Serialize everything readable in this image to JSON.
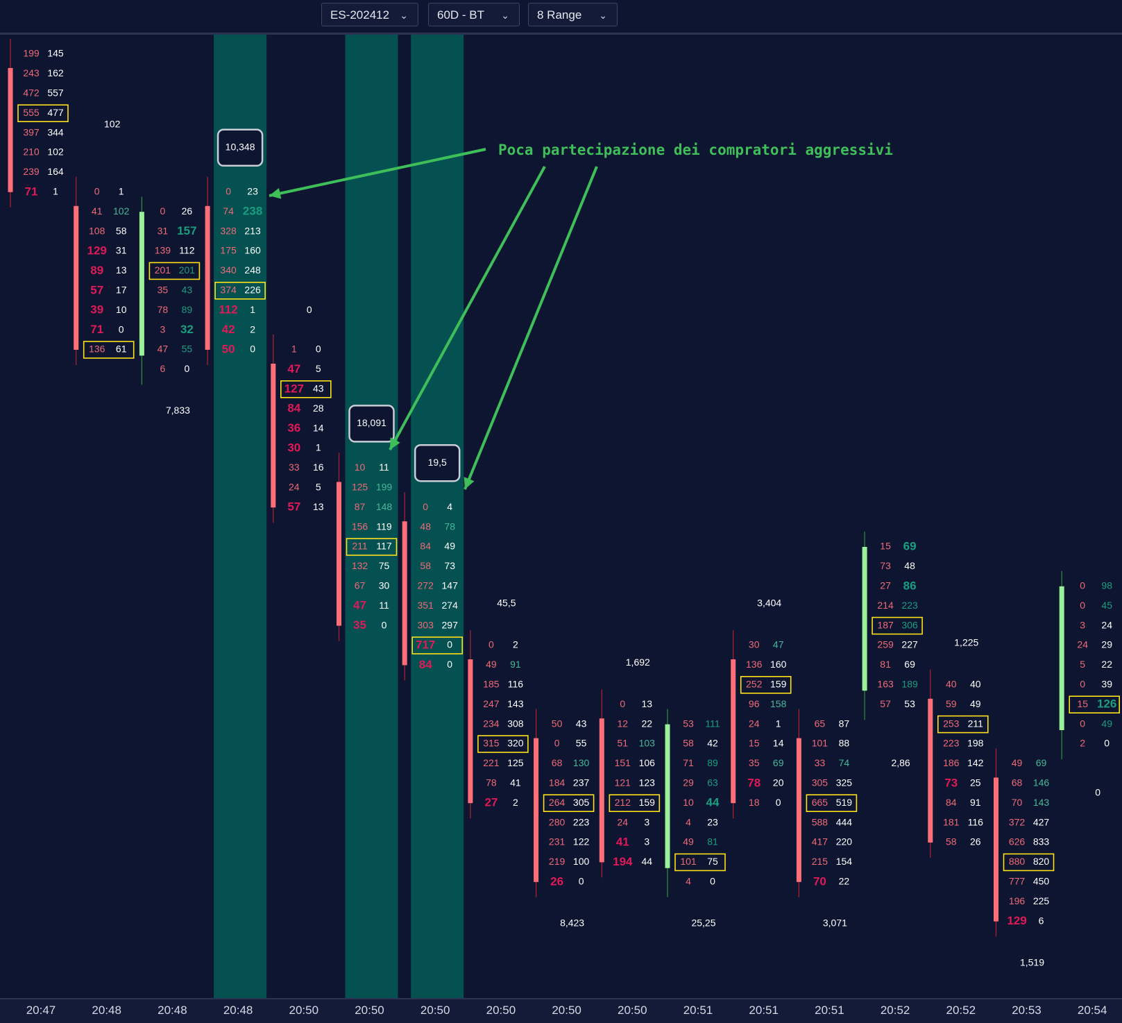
{
  "toolbar": {
    "symbol": "ES-202412",
    "timeframe": "60D - BT",
    "bar_type": "8 Range"
  },
  "annotation": "Poca partecipazione dei compratori aggressivi",
  "colors": {
    "background": "#0e1530",
    "highlight": "#055050",
    "bid": "#f06a78",
    "ask": "#ffffff",
    "strong_bid": "#e01a58",
    "strong_ask": "#1a9e80",
    "bearish": "#ff6f77",
    "bullish": "#9cf09a",
    "poc_box": "#ffe21a",
    "arrow": "#3fbf5a"
  },
  "time_axis": [
    "20:47",
    "20:48",
    "20:48",
    "20:48",
    "20:50",
    "20:50",
    "20:50",
    "20:50",
    "20:50",
    "20:50",
    "20:51",
    "20:51",
    "20:51",
    "20:52",
    "20:52",
    "20:53",
    "20:54"
  ],
  "columns": [
    {
      "time": "20:47",
      "dir": "down",
      "highlighted": false,
      "label": "",
      "boxed_label": "",
      "rows": [
        [
          "199",
          "145"
        ],
        [
          "243",
          "162"
        ],
        [
          "472",
          "557"
        ],
        [
          "555",
          "477"
        ],
        [
          "397",
          "344"
        ],
        [
          "210",
          "102"
        ],
        [
          "239",
          "164"
        ],
        [
          "71",
          "1"
        ]
      ],
      "poc": 3
    },
    {
      "time": "20:48",
      "dir": "down",
      "highlighted": false,
      "label": "102",
      "boxed_label": "",
      "rows": [
        [
          "0",
          "1"
        ],
        [
          "41",
          "102"
        ],
        [
          "108",
          "58"
        ],
        [
          "129",
          "31"
        ],
        [
          "89",
          "13"
        ],
        [
          "57",
          "17"
        ],
        [
          "39",
          "10"
        ],
        [
          "71",
          "0"
        ],
        [
          "136",
          "61"
        ]
      ],
      "poc": 8
    },
    {
      "time": "20:48",
      "dir": "up",
      "highlighted": false,
      "label": "7,833",
      "boxed_label": "",
      "rows": [
        [
          "0",
          "26"
        ],
        [
          "31",
          "157"
        ],
        [
          "139",
          "112"
        ],
        [
          "201",
          "201"
        ],
        [
          "35",
          "43"
        ],
        [
          "78",
          "89"
        ],
        [
          "3",
          "32"
        ],
        [
          "47",
          "55"
        ],
        [
          "6",
          "0"
        ]
      ],
      "poc": 3
    },
    {
      "time": "20:48",
      "dir": "down",
      "highlighted": true,
      "label": "",
      "boxed_label": "10,348",
      "rows": [
        [
          "0",
          "23"
        ],
        [
          "74",
          "238"
        ],
        [
          "328",
          "213"
        ],
        [
          "175",
          "160"
        ],
        [
          "340",
          "248"
        ],
        [
          "374",
          "226"
        ],
        [
          "112",
          "1"
        ],
        [
          "42",
          "2"
        ],
        [
          "50",
          "0"
        ]
      ],
      "poc": 5
    },
    {
      "time": "20:50",
      "dir": "down",
      "highlighted": false,
      "label": "0",
      "boxed_label": "",
      "rows": [
        [
          "1",
          "0"
        ],
        [
          "47",
          "5"
        ],
        [
          "127",
          "43"
        ],
        [
          "84",
          "28"
        ],
        [
          "36",
          "14"
        ],
        [
          "30",
          "1"
        ],
        [
          "33",
          "16"
        ],
        [
          "24",
          "5"
        ],
        [
          "57",
          "13"
        ]
      ],
      "poc": 2
    },
    {
      "time": "20:50",
      "dir": "down",
      "highlighted": true,
      "label": "",
      "boxed_label": "18,091",
      "rows": [
        [
          "10",
          "11"
        ],
        [
          "125",
          "199"
        ],
        [
          "87",
          "148"
        ],
        [
          "156",
          "119"
        ],
        [
          "211",
          "117"
        ],
        [
          "132",
          "75"
        ],
        [
          "67",
          "30"
        ],
        [
          "47",
          "11"
        ],
        [
          "35",
          "0"
        ]
      ],
      "poc": 4
    },
    {
      "time": "20:50",
      "dir": "down",
      "highlighted": true,
      "label": "",
      "boxed_label": "19,5",
      "rows": [
        [
          "0",
          "4"
        ],
        [
          "48",
          "78"
        ],
        [
          "84",
          "49"
        ],
        [
          "58",
          "73"
        ],
        [
          "272",
          "147"
        ],
        [
          "351",
          "274"
        ],
        [
          "303",
          "297"
        ],
        [
          "717",
          "0"
        ],
        [
          "84",
          "0"
        ]
      ],
      "poc": 7
    },
    {
      "time": "20:50",
      "dir": "down",
      "highlighted": false,
      "label": "45,5",
      "boxed_label": "",
      "rows": [
        [
          "0",
          "2"
        ],
        [
          "49",
          "91"
        ],
        [
          "185",
          "116"
        ],
        [
          "247",
          "143"
        ],
        [
          "234",
          "308"
        ],
        [
          "315",
          "320"
        ],
        [
          "221",
          "125"
        ],
        [
          "78",
          "41"
        ],
        [
          "27",
          "2"
        ]
      ],
      "poc": 5
    },
    {
      "time": "20:50",
      "dir": "down",
      "highlighted": false,
      "label": "8,423",
      "boxed_label": "",
      "rows": [
        [
          "50",
          "43"
        ],
        [
          "0",
          "55"
        ],
        [
          "68",
          "130"
        ],
        [
          "184",
          "237"
        ],
        [
          "264",
          "305"
        ],
        [
          "280",
          "223"
        ],
        [
          "231",
          "122"
        ],
        [
          "219",
          "100"
        ],
        [
          "26",
          "0"
        ]
      ],
      "poc": 4
    },
    {
      "time": "20:50",
      "dir": "down",
      "highlighted": false,
      "label": "1,692",
      "boxed_label": "",
      "rows": [
        [
          "0",
          "13"
        ],
        [
          "12",
          "22"
        ],
        [
          "51",
          "103"
        ],
        [
          "151",
          "106"
        ],
        [
          "121",
          "123"
        ],
        [
          "212",
          "159"
        ],
        [
          "24",
          "3"
        ],
        [
          "41",
          "3"
        ],
        [
          "194",
          "44"
        ]
      ],
      "poc": 5
    },
    {
      "time": "20:51",
      "dir": "up",
      "highlighted": false,
      "label": "25,25",
      "boxed_label": "",
      "rows": [
        [
          "53",
          "111"
        ],
        [
          "58",
          "42"
        ],
        [
          "71",
          "89"
        ],
        [
          "29",
          "63"
        ],
        [
          "10",
          "44"
        ],
        [
          "4",
          "23"
        ],
        [
          "49",
          "81"
        ],
        [
          "101",
          "75"
        ],
        [
          "4",
          "0"
        ]
      ],
      "poc": 7
    },
    {
      "time": "20:51",
      "dir": "down",
      "highlighted": false,
      "label": "3,404",
      "boxed_label": "",
      "rows": [
        [
          "30",
          "47"
        ],
        [
          "136",
          "160"
        ],
        [
          "252",
          "159"
        ],
        [
          "96",
          "158"
        ],
        [
          "24",
          "1"
        ],
        [
          "15",
          "14"
        ],
        [
          "35",
          "69"
        ],
        [
          "78",
          "20"
        ],
        [
          "18",
          "0"
        ]
      ],
      "poc": 2
    },
    {
      "time": "20:51",
      "dir": "down",
      "highlighted": false,
      "label": "3,071",
      "boxed_label": "",
      "rows": [
        [
          "65",
          "87"
        ],
        [
          "101",
          "88"
        ],
        [
          "33",
          "74"
        ],
        [
          "305",
          "325"
        ],
        [
          "665",
          "519"
        ],
        [
          "588",
          "444"
        ],
        [
          "417",
          "220"
        ],
        [
          "215",
          "154"
        ],
        [
          "70",
          "22"
        ]
      ],
      "poc": 4
    },
    {
      "time": "20:52",
      "dir": "up",
      "highlighted": false,
      "label": "2,86",
      "boxed_label": "",
      "rows": [
        [
          "15",
          "69"
        ],
        [
          "73",
          "48"
        ],
        [
          "27",
          "86"
        ],
        [
          "214",
          "223"
        ],
        [
          "187",
          "306"
        ],
        [
          "259",
          "227"
        ],
        [
          "81",
          "69"
        ],
        [
          "163",
          "189"
        ],
        [
          "57",
          "53"
        ]
      ],
      "poc": 4
    },
    {
      "time": "20:52",
      "dir": "down",
      "highlighted": false,
      "label": "1,225",
      "boxed_label": "",
      "rows": [
        [
          "40",
          "40"
        ],
        [
          "59",
          "49"
        ],
        [
          "253",
          "211"
        ],
        [
          "223",
          "198"
        ],
        [
          "186",
          "142"
        ],
        [
          "73",
          "25"
        ],
        [
          "84",
          "91"
        ],
        [
          "181",
          "116"
        ],
        [
          "58",
          "26"
        ]
      ],
      "poc": 2
    },
    {
      "time": "20:53",
      "dir": "down",
      "highlighted": false,
      "label": "1,519",
      "boxed_label": "",
      "rows": [
        [
          "49",
          "69"
        ],
        [
          "68",
          "146"
        ],
        [
          "70",
          "143"
        ],
        [
          "372",
          "427"
        ],
        [
          "626",
          "833"
        ],
        [
          "880",
          "820"
        ],
        [
          "777",
          "450"
        ],
        [
          "196",
          "225"
        ],
        [
          "129",
          "6"
        ]
      ],
      "poc": 5
    },
    {
      "time": "20:54",
      "dir": "up",
      "highlighted": false,
      "label": "0",
      "boxed_label": "",
      "rows": [
        [
          "0",
          "98"
        ],
        [
          "0",
          "45"
        ],
        [
          "3",
          "24"
        ],
        [
          "24",
          "29"
        ],
        [
          "5",
          "22"
        ],
        [
          "0",
          "39"
        ],
        [
          "15",
          "126"
        ],
        [
          "0",
          "49"
        ],
        [
          "2",
          "0"
        ]
      ],
      "poc": 6
    }
  ]
}
